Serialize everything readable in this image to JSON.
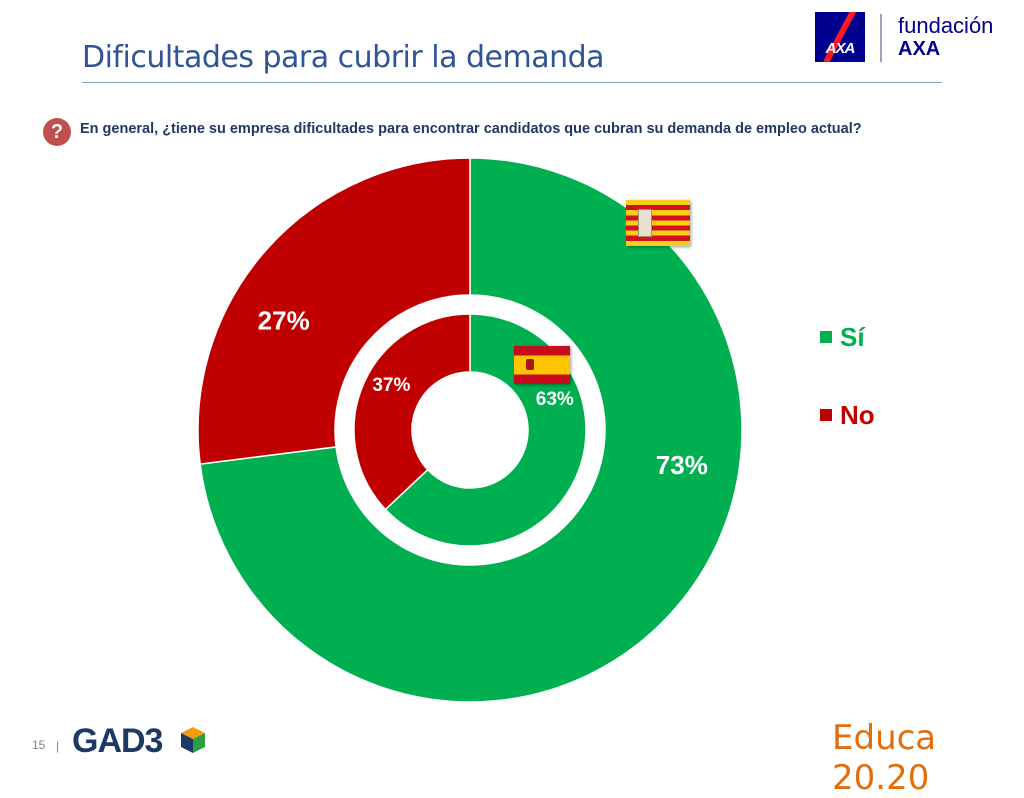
{
  "header": {
    "title": "Dificultades para cubrir la demanda",
    "brand_line1": "fundación",
    "brand_line2": "AXA",
    "axa_logo_text": "AXA"
  },
  "question": {
    "icon": "question-mark-icon",
    "icon_text": "?",
    "text": "En general, ¿tiene su empresa dificultades para encontrar candidatos que cubran su demanda de empleo actual?"
  },
  "chart_data": {
    "type": "pie",
    "subtype": "nested-donut",
    "categories": [
      "Sí",
      "No"
    ],
    "series": [
      {
        "region": "Aragón",
        "ring": "outer",
        "flag_icon": "aragon-flag-icon",
        "values": [
          73,
          27
        ],
        "labels": [
          "73%",
          "27%"
        ]
      },
      {
        "region": "España",
        "ring": "inner",
        "flag_icon": "spain-flag-icon",
        "values": [
          63,
          37
        ],
        "labels": [
          "63%",
          "37%"
        ]
      }
    ],
    "colors": [
      "#00b050",
      "#c00000"
    ],
    "legend": {
      "placement": "right",
      "entries": [
        "Sí",
        "No"
      ]
    }
  },
  "footer": {
    "page_number": "15",
    "separator": "|",
    "left_logo": "GAD3",
    "right_logo": "Educa 20.20"
  }
}
